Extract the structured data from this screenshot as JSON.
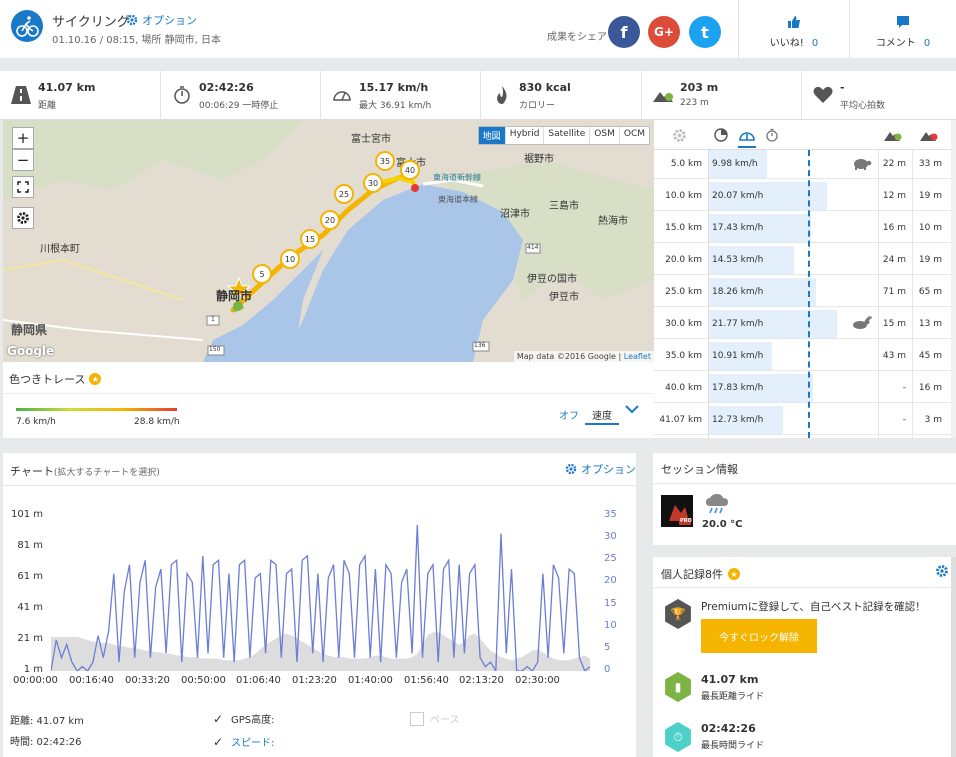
{
  "header": {
    "title": "サイクリング",
    "options_label": "オプション",
    "subtitle": "01.10.16 / 08:15, 場所 静岡市, 日本",
    "share_label": "成果をシェア",
    "facebook": "f",
    "google": "G+",
    "twitter": "t",
    "like_label": "いいね!",
    "like_count": "0",
    "comment_label": "コメント",
    "comment_count": "0"
  },
  "stats": [
    {
      "icon": "road-icon",
      "value": "41.07 km",
      "sub": "距離"
    },
    {
      "icon": "stopwatch-icon",
      "value": "02:42:26",
      "sub": "00:06:29 一時停止"
    },
    {
      "icon": "speedometer-icon",
      "value": "15.17 km/h",
      "sub": "最大 36.91 km/h"
    },
    {
      "icon": "flame-icon",
      "value": "830 kcal",
      "sub": "カロリー"
    },
    {
      "icon": "elevation-up-icon",
      "value": "203 m",
      "sub": "223 m"
    },
    {
      "icon": "heart-icon",
      "value": "-",
      "sub": "平均心拍数"
    }
  ],
  "map": {
    "zoom_in": "+",
    "zoom_out": "−",
    "tabs": [
      "地図",
      "Hybrid",
      "Satellite",
      "OSM",
      "OCM"
    ],
    "active_tab": "地図",
    "labels": [
      {
        "text": "富士宮市",
        "big": false
      },
      {
        "text": "富士市",
        "big": false
      },
      {
        "text": "裾野市",
        "big": false
      },
      {
        "text": "東海道新幹線",
        "big": false
      },
      {
        "text": "東海道本線",
        "big": false
      },
      {
        "text": "沼津市",
        "big": false
      },
      {
        "text": "三島市",
        "big": false
      },
      {
        "text": "熱海市",
        "big": false
      },
      {
        "text": "川根本町",
        "big": false
      },
      {
        "text": "伊豆の国市",
        "big": false
      },
      {
        "text": "伊豆市",
        "big": false
      },
      {
        "text": "静岡市",
        "big": true
      },
      {
        "text": "静岡県",
        "big": true
      }
    ],
    "km_markers": [
      "5",
      "10",
      "15",
      "20",
      "25",
      "30",
      "35",
      "40"
    ],
    "road_numbers": [
      "414",
      "1",
      "150",
      "136"
    ],
    "google_logo": "Google",
    "attribution": "Map data ©2016 Google",
    "leaflet": "Leaflet"
  },
  "trace": {
    "title": "色つきトレース",
    "min": "7.6 km/h",
    "max": "28.8 km/h",
    "off_label": "オフ",
    "speed_label": "速度"
  },
  "splits": [
    {
      "km": "5.0 km",
      "speed": "9.98 km/h",
      "speed_value": 9.98,
      "up": "22 m",
      "down": "33 m",
      "marker": "turtle"
    },
    {
      "km": "10.0 km",
      "speed": "20.07 km/h",
      "speed_value": 20.07,
      "up": "12 m",
      "down": "19 m",
      "marker": ""
    },
    {
      "km": "15.0 km",
      "speed": "17.43 km/h",
      "speed_value": 17.43,
      "up": "16 m",
      "down": "10 m",
      "marker": ""
    },
    {
      "km": "20.0 km",
      "speed": "14.53 km/h",
      "speed_value": 14.53,
      "up": "24 m",
      "down": "19 m",
      "marker": ""
    },
    {
      "km": "25.0 km",
      "speed": "18.26 km/h",
      "speed_value": 18.26,
      "up": "71 m",
      "down": "65 m",
      "marker": ""
    },
    {
      "km": "30.0 km",
      "speed": "21.77 km/h",
      "speed_value": 21.77,
      "up": "15 m",
      "down": "13 m",
      "marker": "rabbit"
    },
    {
      "km": "35.0 km",
      "speed": "10.91 km/h",
      "speed_value": 10.91,
      "up": "43 m",
      "down": "45 m",
      "marker": ""
    },
    {
      "km": "40.0 km",
      "speed": "17.83 km/h",
      "speed_value": 17.83,
      "up": "-",
      "down": "16 m",
      "marker": ""
    },
    {
      "km": "41.07 km",
      "speed": "12.73 km/h",
      "speed_value": 12.73,
      "up": "-",
      "down": "3 m",
      "marker": ""
    }
  ],
  "chart_panel": {
    "title": "チャート",
    "title_hint": "(拡大するチャートを選択)",
    "options_label": "オプション",
    "distance_label": "距離: 41.07 km",
    "time_label": "時間: 02:42:26",
    "legend_gps": "GPS高度:",
    "legend_speed": "スピード:",
    "legend_pace": "ペース"
  },
  "chart_data": {
    "type": "area",
    "title": "",
    "x_ticks": [
      "00:00:00",
      "00:16:40",
      "00:33:20",
      "00:50:00",
      "01:06:40",
      "01:23:20",
      "01:40:00",
      "01:56:40",
      "02:13:20",
      "02:30:00"
    ],
    "y_left_ticks": [
      "101 m",
      "81 m",
      "61 m",
      "41 m",
      "21 m",
      "1 m"
    ],
    "y_left_range": [
      1,
      101
    ],
    "y_right_ticks": [
      "35",
      "30",
      "25",
      "20",
      "15",
      "10",
      "5",
      "0"
    ],
    "y_right_range": [
      0,
      35
    ],
    "series": [
      {
        "name": "GPS高度",
        "color": "#dddddd",
        "values": [
          23,
          23,
          23,
          23,
          23,
          23,
          22,
          21,
          20,
          20,
          19,
          19,
          18,
          17,
          17,
          16,
          16,
          15,
          14,
          14,
          13,
          13,
          12,
          12,
          11,
          11,
          10,
          10,
          10,
          9,
          9,
          9,
          9,
          8,
          8,
          8,
          8,
          9,
          10,
          12,
          15,
          18,
          20,
          22,
          24,
          25,
          24,
          22,
          20,
          18,
          16,
          14,
          12,
          11,
          10,
          10,
          10,
          9,
          9,
          9,
          9,
          10,
          11,
          11,
          10,
          9,
          9,
          9,
          9,
          10,
          12,
          18,
          24,
          26,
          26,
          24,
          22,
          20,
          18,
          20,
          24,
          25,
          22,
          18,
          14,
          12,
          10,
          9,
          8,
          9,
          10,
          12,
          14,
          15,
          13,
          11,
          9,
          8,
          8,
          8,
          9,
          10,
          11,
          9
        ]
      },
      {
        "name": "スピード",
        "color": "#6c7dd6",
        "values": [
          0,
          7,
          3,
          6,
          2,
          0,
          1,
          0,
          2,
          8,
          3,
          9,
          22,
          2,
          18,
          24,
          3,
          20,
          25,
          3,
          19,
          23,
          4,
          24,
          25,
          2,
          22,
          20,
          3,
          26,
          4,
          24,
          25,
          3,
          22,
          2,
          24,
          25,
          3,
          21,
          22,
          4,
          25,
          24,
          3,
          22,
          23,
          2,
          25,
          26,
          4,
          22,
          2,
          21,
          24,
          3,
          25,
          22,
          3,
          24,
          26,
          3,
          23,
          2,
          24,
          22,
          3,
          20,
          23,
          4,
          33,
          3,
          22,
          24,
          2,
          23,
          25,
          3,
          24,
          4,
          22,
          24,
          3,
          1,
          2,
          0,
          31,
          4,
          23,
          0,
          0,
          1,
          0,
          2,
          22,
          3,
          24,
          21,
          4,
          23,
          22,
          3,
          0,
          1
        ]
      }
    ]
  },
  "session": {
    "title": "セッション情報",
    "app": "PRO",
    "temperature": "20.0 °C"
  },
  "records": {
    "title": "個人記録8件",
    "premium_text": "Premiumに登録して、自己ベスト記録を確認！",
    "unlock_label": "今すぐロック解除",
    "items": [
      {
        "value": "41.07 km",
        "label": "最長距離ライド"
      },
      {
        "value": "02:42:26",
        "label": "最長時間ライド"
      }
    ]
  }
}
